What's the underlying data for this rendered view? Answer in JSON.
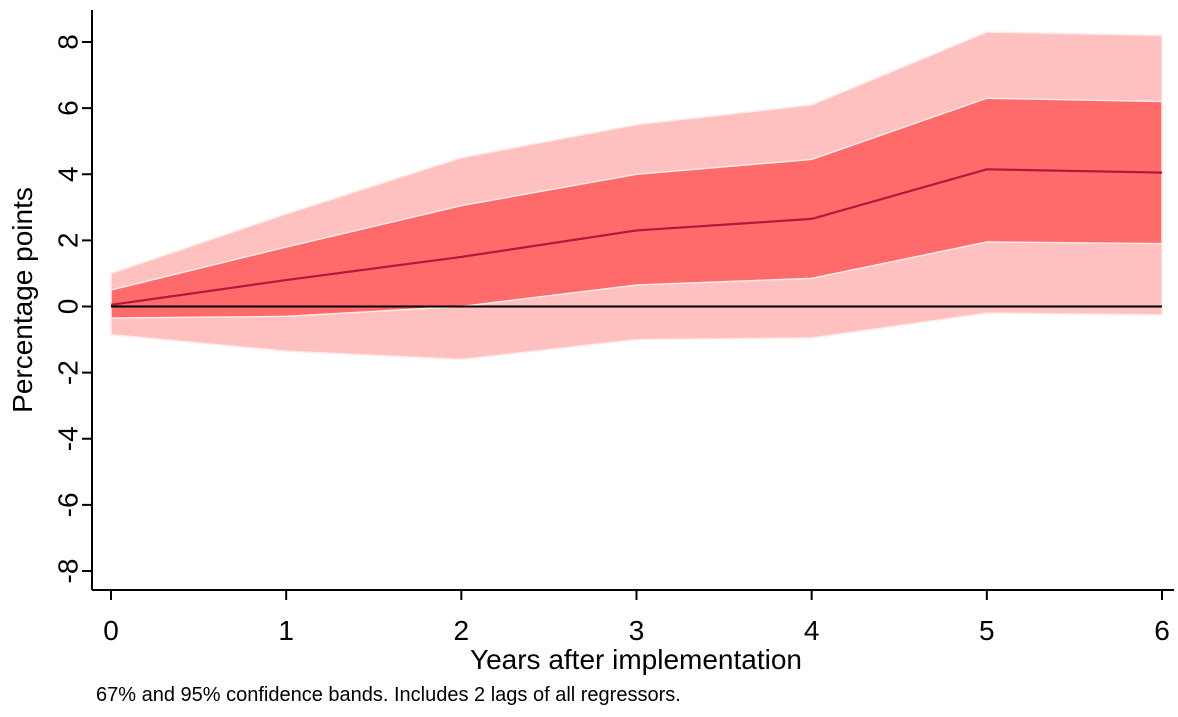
{
  "chart_data": {
    "type": "line",
    "xlabel": "Years after implementation",
    "ylabel": "Percentage points",
    "note": "67% and 95% confidence bands. Includes 2 lags of all regressors.",
    "xlim": [
      0,
      6
    ],
    "ylim": [
      -8,
      8
    ],
    "xticks": [
      0,
      1,
      2,
      3,
      4,
      5,
      6
    ],
    "yticks": [
      -8,
      -6,
      -4,
      -2,
      0,
      2,
      4,
      6,
      8
    ],
    "x": [
      0,
      1,
      2,
      3,
      4,
      5,
      6
    ],
    "series": [
      {
        "values": [
          0.05,
          0.8,
          1.5,
          2.3,
          2.65,
          4.15,
          4.05
        ]
      }
    ],
    "bands": [
      {
        "name": "95%",
        "lower": [
          -0.85,
          -1.35,
          -1.6,
          -1.0,
          -0.95,
          -0.2,
          -0.25
        ],
        "upper": [
          1.0,
          2.8,
          4.5,
          5.5,
          6.1,
          8.3,
          8.2
        ]
      },
      {
        "name": "67%",
        "lower": [
          -0.35,
          -0.3,
          0.0,
          0.65,
          0.85,
          1.95,
          1.9
        ],
        "upper": [
          0.5,
          1.8,
          3.05,
          4.0,
          4.45,
          6.3,
          6.2
        ]
      }
    ],
    "reference_line": 0,
    "grid": false,
    "legend": "none",
    "colors": {
      "band95": "#ffc0c0",
      "band67": "#ff6b6b",
      "estimate": "#b2183b",
      "zero_line": "#000000"
    }
  }
}
